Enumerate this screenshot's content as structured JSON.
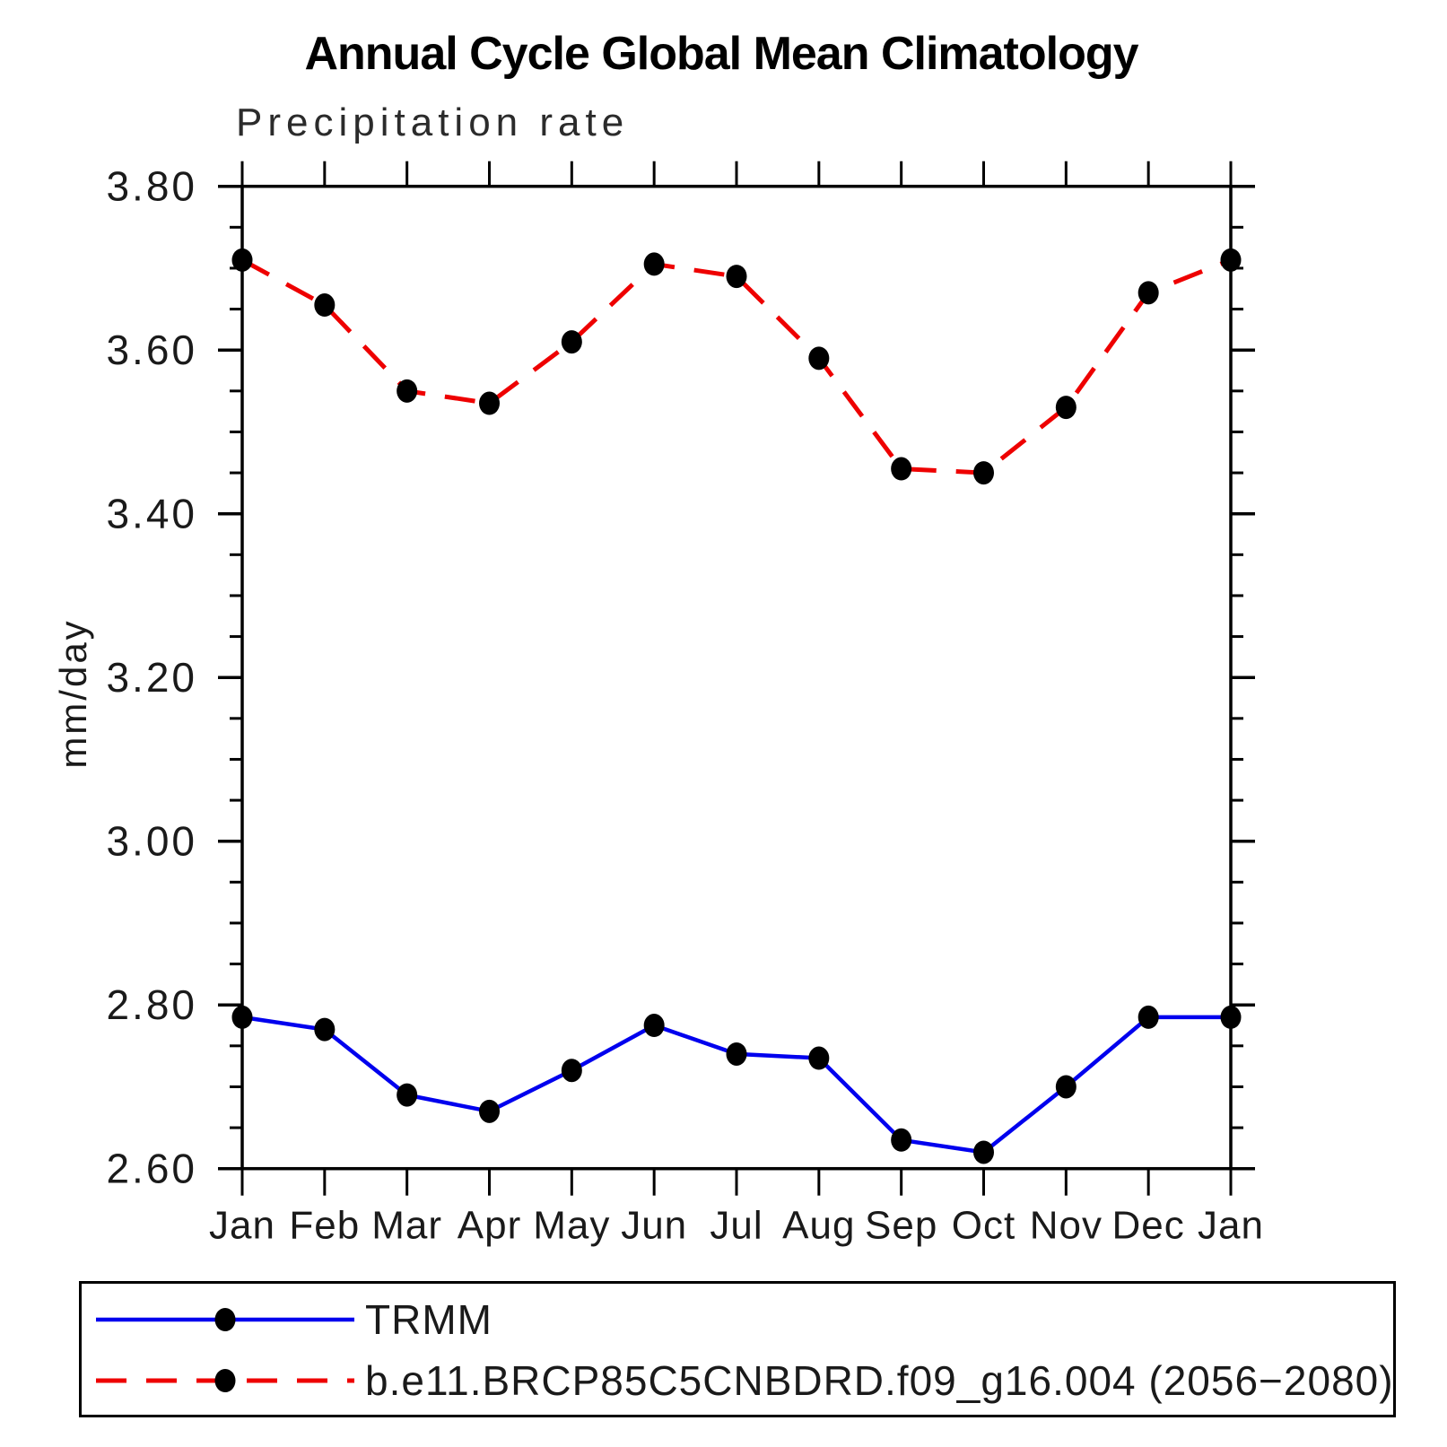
{
  "chart_data": {
    "type": "line",
    "title": "Annual Cycle Global Mean Climatology",
    "subtitle": "Precipitation rate",
    "ylabel": "mm/day",
    "xlabel": "",
    "categories": [
      "Jan",
      "Feb",
      "Mar",
      "Apr",
      "May",
      "Jun",
      "Jul",
      "Aug",
      "Sep",
      "Oct",
      "Nov",
      "Dec",
      "Jan"
    ],
    "ylim": [
      2.6,
      3.8
    ],
    "y_major_tick_step": 0.2,
    "y_minor_tick_step": 0.05,
    "y_tick_labels": [
      "2.60",
      "2.80",
      "3.00",
      "3.20",
      "3.40",
      "3.60",
      "3.80"
    ],
    "grid": false,
    "legend_position": "bottom",
    "marker": "filled-black-dot",
    "marker_color": "#000000",
    "axis_color": "#000000",
    "series": [
      {
        "name": "TRMM",
        "color": "#0000ee",
        "style": "solid",
        "values": [
          2.785,
          2.77,
          2.69,
          2.67,
          2.72,
          2.775,
          2.74,
          2.735,
          2.635,
          2.62,
          2.7,
          2.785,
          2.785
        ]
      },
      {
        "name": "b.e11.BRCP85C5CNBDRD.f09_g16.004 (2056−2080)",
        "color": "#ee0000",
        "style": "dashed",
        "values": [
          3.71,
          3.655,
          3.55,
          3.535,
          3.61,
          3.705,
          3.69,
          3.59,
          3.455,
          3.45,
          3.53,
          3.67,
          3.71
        ]
      }
    ]
  }
}
